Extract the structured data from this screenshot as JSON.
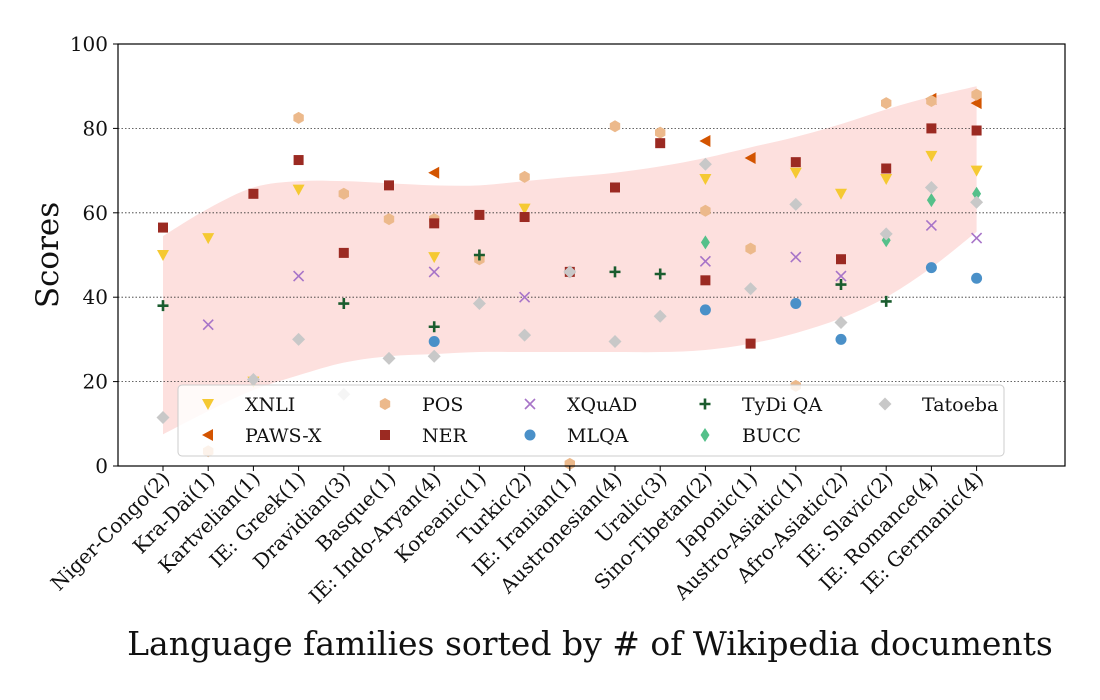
{
  "chart_data": {
    "type": "scatter",
    "xlabel": "Language families sorted by # of Wikipedia documents",
    "ylabel": "Scores",
    "ylim": [
      0,
      100
    ],
    "yticks": [
      0,
      20,
      40,
      60,
      80,
      100
    ],
    "grid": "horizontal dotted at 20, 40, 60, 80",
    "legend_position": "lower-center",
    "categories": [
      "Niger-Congo(2)",
      "Kra-Dai(1)",
      "Kartvelian(1)",
      "IE: Greek(1)",
      "Dravidian(3)",
      "Basque(1)",
      "IE: Indo-Aryan(4)",
      "Koreanic(1)",
      "Turkic(2)",
      "IE: Iranian(1)",
      "Austronesian(4)",
      "Uralic(3)",
      "Sino-Tibetan(2)",
      "Japonic(1)",
      "Austro-Asiatic(1)",
      "Afro-Asiatic(2)",
      "IE: Slavic(2)",
      "IE: Romance(4)",
      "IE: Germanic(4)"
    ],
    "band": {
      "upper": [
        54.5,
        61,
        66,
        67.5,
        67.5,
        67,
        66.5,
        66.5,
        67.5,
        68.5,
        69.5,
        71,
        73,
        75.5,
        78,
        81,
        84.5,
        87.5,
        90
      ],
      "lower": [
        7.5,
        13,
        18,
        21.5,
        24.5,
        26,
        26.5,
        27,
        27,
        27,
        27,
        27,
        27.5,
        29,
        31.5,
        35,
        40,
        47,
        55.5
      ]
    },
    "series": [
      {
        "name": "XNLI",
        "marker": "triangle-down",
        "color": "#f5c932",
        "values": [
          50,
          54,
          20,
          65.5,
          null,
          null,
          49.5,
          null,
          61,
          null,
          null,
          null,
          68,
          null,
          69.5,
          64.5,
          68,
          73.5,
          70
        ]
      },
      {
        "name": "PAWS-X",
        "marker": "triangle-left",
        "color": "#d35400",
        "values": [
          null,
          null,
          null,
          null,
          null,
          null,
          69.5,
          null,
          null,
          null,
          null,
          null,
          77,
          73,
          null,
          null,
          null,
          87,
          86
        ]
      },
      {
        "name": "POS",
        "marker": "hexagon",
        "color": "#ecb98b",
        "values": [
          null,
          3.5,
          null,
          82.5,
          64.5,
          58.5,
          58.5,
          49,
          68.5,
          0.5,
          80.5,
          79,
          60.5,
          51.5,
          19,
          null,
          86,
          86.5,
          88
        ]
      },
      {
        "name": "NER",
        "marker": "square",
        "color": "#9b2a22",
        "values": [
          56.5,
          null,
          64.5,
          72.5,
          50.5,
          66.5,
          57.5,
          59.5,
          59,
          46,
          66,
          76.5,
          44,
          29,
          72,
          49,
          70.5,
          80,
          79.5
        ]
      },
      {
        "name": "XQuAD",
        "marker": "x",
        "color": "#a774c8",
        "values": [
          null,
          33.5,
          null,
          45,
          null,
          null,
          46,
          null,
          40,
          null,
          null,
          null,
          48.5,
          null,
          49.5,
          45,
          null,
          57,
          54
        ]
      },
      {
        "name": "MLQA",
        "marker": "circle",
        "color": "#4a90c8",
        "values": [
          null,
          null,
          null,
          null,
          null,
          null,
          29.5,
          null,
          null,
          null,
          null,
          null,
          37,
          null,
          38.5,
          30,
          null,
          47,
          44.5
        ]
      },
      {
        "name": "TyDi QA",
        "marker": "plus",
        "color": "#1a5c2e",
        "values": [
          38,
          null,
          null,
          null,
          38.5,
          null,
          33,
          50,
          null,
          46,
          46,
          45.5,
          null,
          null,
          null,
          43,
          39,
          null,
          null
        ]
      },
      {
        "name": "BUCC",
        "marker": "thin-diamond",
        "color": "#55c08a",
        "values": [
          null,
          null,
          null,
          null,
          null,
          null,
          null,
          null,
          null,
          null,
          null,
          null,
          53,
          null,
          null,
          null,
          53.5,
          63,
          64.5
        ]
      },
      {
        "name": "Tatoeba",
        "marker": "diamond",
        "color": "#c8c8c8",
        "values": [
          11.5,
          null,
          20.5,
          30,
          17,
          25.5,
          26,
          38.5,
          31,
          46,
          29.5,
          35.5,
          71.5,
          42,
          62,
          34,
          55,
          66,
          62.5
        ]
      }
    ]
  }
}
